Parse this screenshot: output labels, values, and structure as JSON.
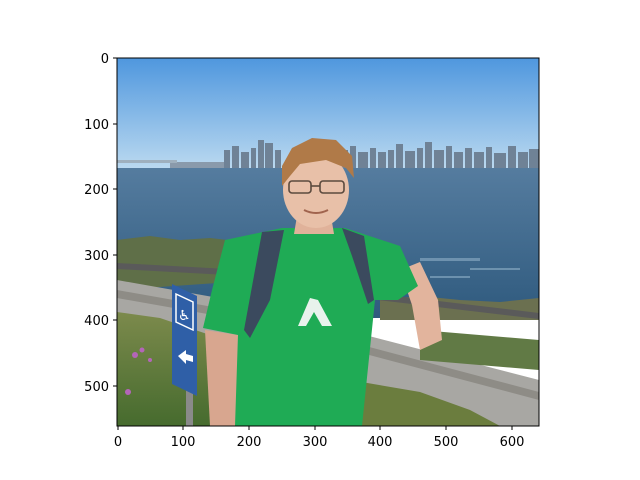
{
  "figure": {
    "image_description": "photo",
    "x_ticks": [
      "0",
      "100",
      "200",
      "300",
      "400",
      "500",
      "600"
    ],
    "y_ticks": [
      "0",
      "100",
      "200",
      "300",
      "400",
      "500"
    ]
  },
  "colors": {
    "sky_top": "#5a9fe0",
    "sky_bottom": "#b7d7f0",
    "water": "#3f6b8e",
    "skyline": "#6d7f93",
    "shirt_green": "#1faa55",
    "hill_green": "#5d7f3e",
    "sign_blue": "#2f5fa7"
  }
}
